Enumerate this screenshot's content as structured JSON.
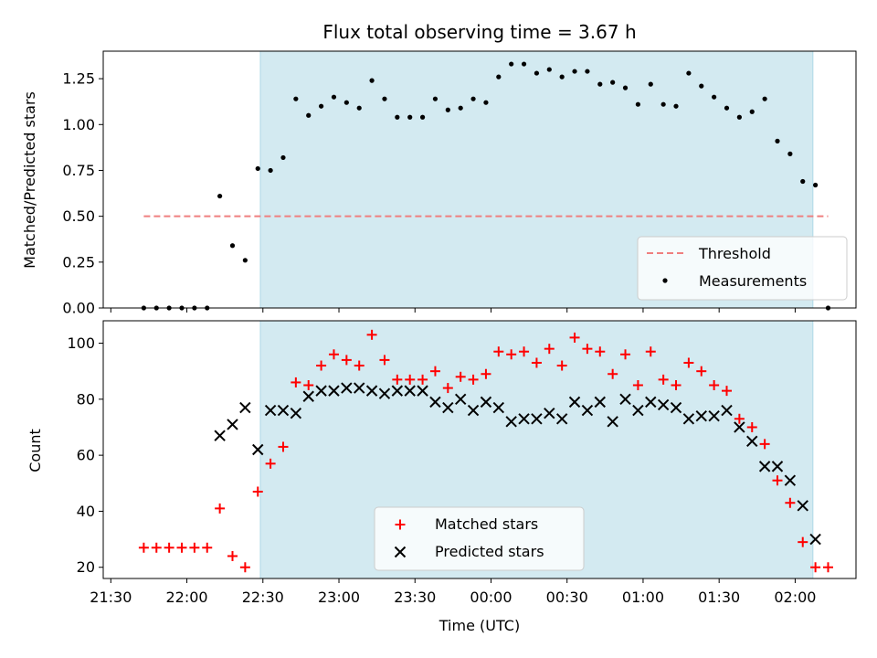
{
  "chart_data": [
    {
      "type": "scatter",
      "title": "Flux total observing time = 3.67 h",
      "xlabel": "",
      "ylabel": "Matched/Predicted stars",
      "ylim": [
        0,
        1.4
      ],
      "yticks": [
        "0.00",
        "0.25",
        "0.50",
        "0.75",
        "1.00",
        "1.25"
      ],
      "shaded_span": [
        "22:29",
        "02:07"
      ],
      "legend": {
        "placement": "lower right",
        "entries": [
          "Threshold",
          "Measurements"
        ]
      },
      "threshold": {
        "name": "Threshold",
        "y": 0.5,
        "x_start": "21:43",
        "x_end": "02:13",
        "color": "#ef7f7f"
      },
      "series": [
        {
          "name": "Measurements",
          "color": "#000000",
          "points": [
            [
              "21:43",
              0.0
            ],
            [
              "21:48",
              0.0
            ],
            [
              "21:53",
              0.0
            ],
            [
              "21:58",
              0.0
            ],
            [
              "22:03",
              0.0
            ],
            [
              "22:08",
              0.0
            ],
            [
              "22:13",
              0.61
            ],
            [
              "22:18",
              0.34
            ],
            [
              "22:23",
              0.26
            ],
            [
              "22:28",
              0.76
            ],
            [
              "22:33",
              0.75
            ],
            [
              "22:38",
              0.82
            ],
            [
              "22:43",
              1.14
            ],
            [
              "22:48",
              1.05
            ],
            [
              "22:53",
              1.1
            ],
            [
              "22:58",
              1.15
            ],
            [
              "23:03",
              1.12
            ],
            [
              "23:08",
              1.09
            ],
            [
              "23:13",
              1.24
            ],
            [
              "23:18",
              1.14
            ],
            [
              "23:23",
              1.04
            ],
            [
              "23:28",
              1.04
            ],
            [
              "23:33",
              1.04
            ],
            [
              "23:38",
              1.14
            ],
            [
              "23:43",
              1.08
            ],
            [
              "23:48",
              1.09
            ],
            [
              "23:53",
              1.14
            ],
            [
              "23:58",
              1.12
            ],
            [
              "00:03",
              1.26
            ],
            [
              "00:08",
              1.33
            ],
            [
              "00:13",
              1.33
            ],
            [
              "00:18",
              1.28
            ],
            [
              "00:23",
              1.3
            ],
            [
              "00:28",
              1.26
            ],
            [
              "00:33",
              1.29
            ],
            [
              "00:38",
              1.29
            ],
            [
              "00:43",
              1.22
            ],
            [
              "00:48",
              1.23
            ],
            [
              "00:53",
              1.2
            ],
            [
              "00:58",
              1.11
            ],
            [
              "01:03",
              1.22
            ],
            [
              "01:08",
              1.11
            ],
            [
              "01:13",
              1.1
            ],
            [
              "01:18",
              1.28
            ],
            [
              "01:23",
              1.21
            ],
            [
              "01:28",
              1.15
            ],
            [
              "01:33",
              1.09
            ],
            [
              "01:38",
              1.04
            ],
            [
              "01:43",
              1.07
            ],
            [
              "01:48",
              1.14
            ],
            [
              "01:53",
              0.91
            ],
            [
              "01:58",
              0.84
            ],
            [
              "02:03",
              0.69
            ],
            [
              "02:08",
              0.67
            ],
            [
              "02:13",
              0.0
            ]
          ]
        }
      ]
    },
    {
      "type": "scatter",
      "xlabel": "Time (UTC)",
      "ylabel": "Count",
      "ylim": [
        16,
        108
      ],
      "yticks": [
        "20",
        "40",
        "60",
        "80",
        "100"
      ],
      "xticks": [
        "21:30",
        "22:00",
        "22:30",
        "23:00",
        "23:30",
        "00:00",
        "00:30",
        "01:00",
        "01:30",
        "02:00"
      ],
      "shaded_span": [
        "22:29",
        "02:07"
      ],
      "legend": {
        "placement": "lower center",
        "entries": [
          "Matched stars",
          "Predicted stars"
        ]
      },
      "series": [
        {
          "name": "Matched stars",
          "marker": "plus",
          "color": "#ff0000",
          "points": [
            [
              "21:43",
              27
            ],
            [
              "21:48",
              27
            ],
            [
              "21:53",
              27
            ],
            [
              "21:58",
              27
            ],
            [
              "22:03",
              27
            ],
            [
              "22:08",
              27
            ],
            [
              "22:13",
              41
            ],
            [
              "22:18",
              24
            ],
            [
              "22:23",
              20
            ],
            [
              "22:28",
              47
            ],
            [
              "22:33",
              57
            ],
            [
              "22:38",
              63
            ],
            [
              "22:43",
              86
            ],
            [
              "22:48",
              85
            ],
            [
              "22:53",
              92
            ],
            [
              "22:58",
              96
            ],
            [
              "23:03",
              94
            ],
            [
              "23:08",
              92
            ],
            [
              "23:13",
              103
            ],
            [
              "23:18",
              94
            ],
            [
              "23:23",
              87
            ],
            [
              "23:28",
              87
            ],
            [
              "23:33",
              87
            ],
            [
              "23:38",
              90
            ],
            [
              "23:43",
              84
            ],
            [
              "23:48",
              88
            ],
            [
              "23:53",
              87
            ],
            [
              "23:58",
              89
            ],
            [
              "00:03",
              97
            ],
            [
              "00:08",
              96
            ],
            [
              "00:13",
              97
            ],
            [
              "00:18",
              93
            ],
            [
              "00:23",
              98
            ],
            [
              "00:28",
              92
            ],
            [
              "00:33",
              102
            ],
            [
              "00:38",
              98
            ],
            [
              "00:43",
              97
            ],
            [
              "00:48",
              89
            ],
            [
              "00:53",
              96
            ],
            [
              "00:58",
              85
            ],
            [
              "01:03",
              97
            ],
            [
              "01:08",
              87
            ],
            [
              "01:13",
              85
            ],
            [
              "01:18",
              93
            ],
            [
              "01:23",
              90
            ],
            [
              "01:28",
              85
            ],
            [
              "01:33",
              83
            ],
            [
              "01:38",
              73
            ],
            [
              "01:43",
              70
            ],
            [
              "01:48",
              64
            ],
            [
              "01:53",
              51
            ],
            [
              "01:58",
              43
            ],
            [
              "02:03",
              29
            ],
            [
              "02:08",
              20
            ],
            [
              "02:13",
              20
            ]
          ]
        },
        {
          "name": "Predicted stars",
          "marker": "x",
          "color": "#000000",
          "points": [
            [
              "22:13",
              67
            ],
            [
              "22:18",
              71
            ],
            [
              "22:23",
              77
            ],
            [
              "22:28",
              62
            ],
            [
              "22:33",
              76
            ],
            [
              "22:38",
              76
            ],
            [
              "22:43",
              75
            ],
            [
              "22:48",
              81
            ],
            [
              "22:53",
              83
            ],
            [
              "22:58",
              83
            ],
            [
              "23:03",
              84
            ],
            [
              "23:08",
              84
            ],
            [
              "23:13",
              83
            ],
            [
              "23:18",
              82
            ],
            [
              "23:23",
              83
            ],
            [
              "23:28",
              83
            ],
            [
              "23:33",
              83
            ],
            [
              "23:38",
              79
            ],
            [
              "23:43",
              77
            ],
            [
              "23:48",
              80
            ],
            [
              "23:53",
              76
            ],
            [
              "23:58",
              79
            ],
            [
              "00:03",
              77
            ],
            [
              "00:08",
              72
            ],
            [
              "00:13",
              73
            ],
            [
              "00:18",
              73
            ],
            [
              "00:23",
              75
            ],
            [
              "00:28",
              73
            ],
            [
              "00:33",
              79
            ],
            [
              "00:38",
              76
            ],
            [
              "00:43",
              79
            ],
            [
              "00:48",
              72
            ],
            [
              "00:53",
              80
            ],
            [
              "00:58",
              76
            ],
            [
              "01:03",
              79
            ],
            [
              "01:08",
              78
            ],
            [
              "01:13",
              77
            ],
            [
              "01:18",
              73
            ],
            [
              "01:23",
              74
            ],
            [
              "01:28",
              74
            ],
            [
              "01:33",
              76
            ],
            [
              "01:38",
              70
            ],
            [
              "01:43",
              65
            ],
            [
              "01:48",
              56
            ],
            [
              "01:53",
              56
            ],
            [
              "01:58",
              51
            ],
            [
              "02:03",
              42
            ],
            [
              "02:08",
              30
            ]
          ]
        }
      ]
    }
  ],
  "colors": {
    "shade": "#d3eaf1",
    "shade_edge": "#add8e6",
    "matched": "#ff0000",
    "predicted": "#000000",
    "threshold": "#ef7f7f"
  }
}
